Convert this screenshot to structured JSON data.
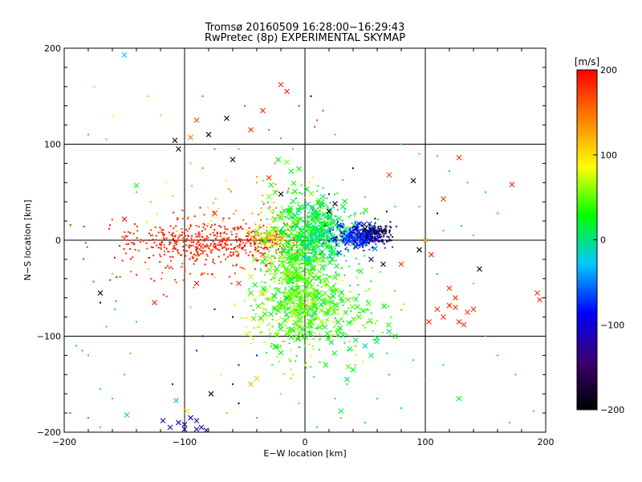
{
  "chart_data": {
    "type": "scatter",
    "title": "Tromsø 20160509 16:28:00−16:29:43",
    "subtitle": "RwPretec (8p) EXPERIMENTAL SKYMAP",
    "xlabel": "E−W location [km]",
    "ylabel": "N−S location [km]",
    "xlim": [
      -200,
      200
    ],
    "ylim": [
      -200,
      200
    ],
    "xticks": [
      "−200",
      "−100",
      "0",
      "100",
      "200"
    ],
    "yticks": [
      "−200",
      "−100",
      "0",
      "100",
      "200"
    ],
    "grid_lines": [
      -100,
      0,
      100
    ],
    "colorbar": {
      "label": "[m/s]",
      "range": [
        -200,
        200
      ],
      "ticks": [
        "200",
        "100",
        "0",
        "−100",
        "−200"
      ],
      "colormap": [
        "#000000",
        "#3a0070",
        "#0000ff",
        "#00c8ff",
        "#00ff00",
        "#ffff00",
        "#ff8000",
        "#ff0000"
      ]
    },
    "series": [
      {
        "marker": "cross",
        "points": [
          [
            -150,
            193,
            -30
          ],
          [
            -20,
            162,
            180
          ],
          [
            -15,
            155,
            190
          ],
          [
            -35,
            135,
            180
          ],
          [
            -90,
            125,
            170
          ],
          [
            -65,
            127,
            -190
          ],
          [
            -108,
            104,
            -190
          ],
          [
            -105,
            95,
            -190
          ],
          [
            -95,
            107,
            150
          ],
          [
            -80,
            110,
            -190
          ],
          [
            -60,
            84,
            -190
          ],
          [
            -45,
            115,
            180
          ],
          [
            -140,
            57,
            30
          ],
          [
            -150,
            22,
            190
          ],
          [
            -75,
            28,
            180
          ],
          [
            -20,
            48,
            -195
          ],
          [
            -30,
            65,
            170
          ],
          [
            70,
            68,
            170
          ],
          [
            90,
            62,
            -190
          ],
          [
            115,
            43,
            180
          ],
          [
            128,
            86,
            180
          ],
          [
            172,
            58,
            180
          ],
          [
            -35,
            -15,
            170
          ],
          [
            -55,
            -45,
            180
          ],
          [
            -90,
            -45,
            190
          ],
          [
            -125,
            -65,
            180
          ],
          [
            -45,
            -55,
            30
          ],
          [
            -35,
            -55,
            100
          ],
          [
            10,
            -5,
            40
          ],
          [
            20,
            30,
            -190
          ],
          [
            25,
            38,
            -195
          ],
          [
            50,
            12,
            -195
          ],
          [
            55,
            -20,
            -160
          ],
          [
            65,
            -25,
            -195
          ],
          [
            80,
            -25,
            180
          ],
          [
            95,
            -10,
            -190
          ],
          [
            100,
            0,
            100
          ],
          [
            105,
            -15,
            180
          ],
          [
            145,
            -30,
            -195
          ],
          [
            120,
            -50,
            180
          ],
          [
            125,
            -60,
            180
          ],
          [
            125,
            -70,
            180
          ],
          [
            120,
            -68,
            190
          ],
          [
            135,
            -75,
            180
          ],
          [
            140,
            -72,
            180
          ],
          [
            103,
            -85,
            180
          ],
          [
            110,
            -72,
            180
          ],
          [
            115,
            -80,
            180
          ],
          [
            128,
            -85,
            180
          ],
          [
            132,
            -88,
            180
          ],
          [
            193,
            -55,
            180
          ],
          [
            195,
            -62,
            180
          ],
          [
            -148,
            -182,
            -30
          ],
          [
            -118,
            -188,
            -120
          ],
          [
            -112,
            -195,
            -100
          ],
          [
            -105,
            -190,
            -110
          ],
          [
            -100,
            -192,
            -120
          ],
          [
            -95,
            -185,
            -110
          ],
          [
            -90,
            -188,
            -120
          ],
          [
            -90,
            -197,
            -130
          ],
          [
            -86,
            -195,
            -120
          ],
          [
            -82,
            -198,
            -110
          ],
          [
            -100,
            -197,
            -115
          ],
          [
            -107,
            -167,
            -30
          ],
          [
            128,
            -165,
            20
          ],
          [
            30,
            -178,
            10
          ],
          [
            -40,
            -144,
            110
          ],
          [
            -45,
            -150,
            120
          ],
          [
            -98,
            -178,
            100
          ],
          [
            -78,
            -160,
            -190
          ],
          [
            50,
            -110,
            -10
          ],
          [
            55,
            -120,
            10
          ],
          [
            70,
            -95,
            -10
          ],
          [
            75,
            -100,
            20
          ],
          [
            60,
            -102,
            5
          ],
          [
            -45,
            -38,
            70
          ],
          [
            35,
            -145,
            10
          ],
          [
            40,
            -135,
            20
          ],
          [
            -170,
            -55,
            -200
          ]
        ]
      },
      {
        "marker": "dot",
        "points": [
          [
            -170,
            -65,
            -180
          ],
          [
            -160,
            -35,
            50
          ],
          [
            -130,
            -30,
            60
          ],
          [
            -140,
            50,
            40
          ],
          [
            -128,
            40,
            50
          ],
          [
            -115,
            60,
            90
          ],
          [
            -110,
            46,
            110
          ],
          [
            -85,
            75,
            150
          ],
          [
            -75,
            95,
            160
          ],
          [
            -55,
            95,
            140
          ],
          [
            -40,
            60,
            130
          ],
          [
            -25,
            80,
            140
          ],
          [
            -10,
            95,
            150
          ],
          [
            5,
            150,
            -190
          ],
          [
            8,
            118,
            160
          ],
          [
            -20,
            106,
            150
          ],
          [
            40,
            75,
            -190
          ],
          [
            50,
            45,
            10
          ],
          [
            75,
            35,
            20
          ],
          [
            95,
            35,
            -10
          ],
          [
            110,
            28,
            -190
          ],
          [
            20,
            48,
            -180
          ],
          [
            30,
            15,
            -150
          ],
          [
            10,
            125,
            170
          ],
          [
            -95,
            80,
            120
          ],
          [
            -170,
            -155,
            -20
          ],
          [
            -160,
            -165,
            -20
          ],
          [
            -150,
            -140,
            -10
          ],
          [
            -145,
            -118,
            40
          ],
          [
            -180,
            -120,
            -30
          ],
          [
            -110,
            -150,
            -160
          ],
          [
            -65,
            -180,
            50
          ],
          [
            -55,
            -170,
            -190
          ],
          [
            -40,
            -185,
            30
          ],
          [
            -20,
            -160,
            60
          ],
          [
            -10,
            -140,
            70
          ],
          [
            0,
            -130,
            90
          ],
          [
            5,
            -120,
            80
          ],
          [
            25,
            -165,
            30
          ],
          [
            35,
            -150,
            20
          ],
          [
            60,
            -165,
            30
          ],
          [
            80,
            -175,
            10
          ],
          [
            50,
            -190,
            20
          ],
          [
            30,
            -185,
            40
          ],
          [
            -70,
            -140,
            100
          ],
          [
            -140,
            -85,
            -30
          ],
          [
            -158,
            -72,
            -20
          ],
          [
            -165,
            -90,
            20
          ],
          [
            -185,
            -115,
            -10
          ],
          [
            -190,
            -110,
            20
          ],
          [
            -75,
            -72,
            -150
          ],
          [
            -60,
            -80,
            -190
          ],
          [
            -85,
            -100,
            -120
          ],
          [
            -90,
            -115,
            -100
          ],
          [
            -95,
            -70,
            120
          ],
          [
            -180,
            110,
            30
          ],
          [
            -165,
            105,
            40
          ],
          [
            -120,
            130,
            60
          ],
          [
            -30,
            115,
            160
          ],
          [
            25,
            110,
            10
          ],
          [
            80,
            100,
            20
          ],
          [
            95,
            90,
            5
          ],
          [
            110,
            88,
            10
          ],
          [
            120,
            72,
            20
          ],
          [
            135,
            60,
            20
          ],
          [
            150,
            50,
            10
          ],
          [
            160,
            28,
            20
          ],
          [
            130,
            15,
            -10
          ],
          [
            140,
            5,
            15
          ],
          [
            115,
            10,
            -30
          ],
          [
            110,
            -35,
            30
          ],
          [
            140,
            -45,
            40
          ],
          [
            150,
            -100,
            30
          ],
          [
            160,
            -120,
            20
          ],
          [
            175,
            -140,
            10
          ],
          [
            190,
            -178,
            10
          ],
          [
            170,
            -190,
            -10
          ],
          [
            -195,
            15,
            40
          ],
          [
            -195,
            -180,
            -50
          ],
          [
            -180,
            -185,
            -40
          ],
          [
            -170,
            -195,
            -10
          ],
          [
            -60,
            -150,
            -150
          ],
          [
            -55,
            -130,
            -100
          ],
          [
            -40,
            -120,
            -80
          ],
          [
            -30,
            -100,
            -60
          ],
          [
            -20,
            -110,
            50
          ],
          [
            -5,
            -170,
            40
          ],
          [
            10,
            -195,
            30
          ],
          [
            100,
            -145,
            20
          ],
          [
            115,
            -130,
            10
          ],
          [
            90,
            -125,
            30
          ],
          [
            70,
            -140,
            20
          ],
          [
            15,
            135,
            180
          ],
          [
            -5,
            140,
            190
          ],
          [
            -50,
            140,
            170
          ],
          [
            -85,
            150,
            160
          ],
          [
            -100,
            160,
            150
          ],
          [
            -130,
            150,
            120
          ],
          [
            -160,
            130,
            90
          ],
          [
            -175,
            160,
            60
          ]
        ]
      }
    ],
    "clusters": [
      {
        "marker": "dot",
        "n": 360,
        "center": [
          -65,
          -3
        ],
        "spread": [
          35,
          9
        ],
        "v": [
          165,
          200
        ]
      },
      {
        "marker": "dot",
        "n": 120,
        "center": [
          -100,
          -2
        ],
        "spread": [
          30,
          12
        ],
        "v": [
          175,
          200
        ]
      },
      {
        "marker": "dot",
        "n": 110,
        "center": [
          -30,
          3
        ],
        "spread": [
          8,
          5
        ],
        "v": [
          90,
          140
        ]
      },
      {
        "marker": "dot",
        "n": 500,
        "center": [
          -8,
          -35
        ],
        "spread": [
          16,
          42
        ],
        "v": [
          10,
          70
        ]
      },
      {
        "marker": "cross",
        "n": 260,
        "center": [
          -8,
          -30
        ],
        "spread": [
          15,
          40
        ],
        "v": [
          15,
          65
        ]
      },
      {
        "marker": "dot",
        "n": 260,
        "center": [
          15,
          8
        ],
        "spread": [
          16,
          18
        ],
        "v": [
          -20,
          30
        ]
      },
      {
        "marker": "cross",
        "n": 120,
        "center": [
          14,
          10
        ],
        "spread": [
          14,
          16
        ],
        "v": [
          -15,
          35
        ]
      },
      {
        "marker": "dot",
        "n": 180,
        "center": [
          45,
          4
        ],
        "spread": [
          12,
          6
        ],
        "v": [
          -110,
          -50
        ]
      },
      {
        "marker": "cross",
        "n": 70,
        "center": [
          50,
          4
        ],
        "spread": [
          10,
          6
        ],
        "v": [
          -110,
          -50
        ]
      },
      {
        "marker": "dot",
        "n": 100,
        "center": [
          60,
          8
        ],
        "spread": [
          8,
          6
        ],
        "v": [
          -200,
          -140
        ]
      },
      {
        "marker": "dot",
        "n": 160,
        "center": [
          20,
          -75
        ],
        "spread": [
          25,
          22
        ],
        "v": [
          20,
          70
        ]
      },
      {
        "marker": "dot",
        "n": 90,
        "center": [
          -15,
          -80
        ],
        "spread": [
          25,
          15
        ],
        "v": [
          60,
          100
        ]
      },
      {
        "marker": "cross",
        "n": 60,
        "center": [
          25,
          -80
        ],
        "spread": [
          20,
          18
        ],
        "v": [
          10,
          50
        ]
      },
      {
        "marker": "dot",
        "n": 70,
        "center": [
          -45,
          25
        ],
        "spread": [
          35,
          20
        ],
        "v": [
          90,
          160
        ]
      },
      {
        "marker": "dot",
        "n": 90,
        "center": [
          -105,
          -20
        ],
        "spread": [
          30,
          18
        ],
        "v": [
          150,
          200
        ]
      }
    ]
  }
}
